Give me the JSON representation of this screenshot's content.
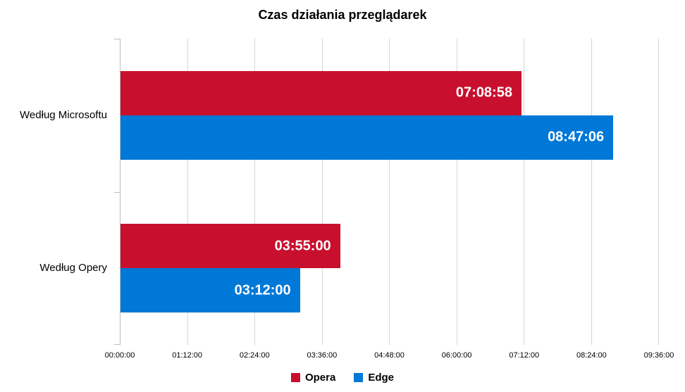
{
  "chart_data": {
    "type": "bar",
    "orientation": "horizontal",
    "title": "Czas działania przeglądarek",
    "categories": [
      "Według Microsoftu",
      "Według Opery"
    ],
    "series": [
      {
        "name": "Opera",
        "color": "#C8102E",
        "labels": [
          "07:08:58",
          "03:55:00"
        ],
        "values_seconds": [
          25738,
          14100
        ]
      },
      {
        "name": "Edge",
        "color": "#0078D7",
        "labels": [
          "08:47:06",
          "03:12:00"
        ],
        "values_seconds": [
          31626,
          11520
        ]
      }
    ],
    "x_ticks": [
      "00:00:00",
      "01:12:00",
      "02:24:00",
      "03:36:00",
      "04:48:00",
      "06:00:00",
      "07:12:00",
      "08:24:00",
      "09:36:00"
    ],
    "x_min_seconds": 0,
    "x_max_seconds": 34560,
    "grid": true,
    "legend_position": "bottom",
    "value_labels": "inside-end",
    "colors": {
      "grid": "#D6D6D6",
      "axis": "#BDBDBD",
      "text": "#000000",
      "label_text": "#FFFFFF",
      "background": "#FFFFFF"
    }
  }
}
